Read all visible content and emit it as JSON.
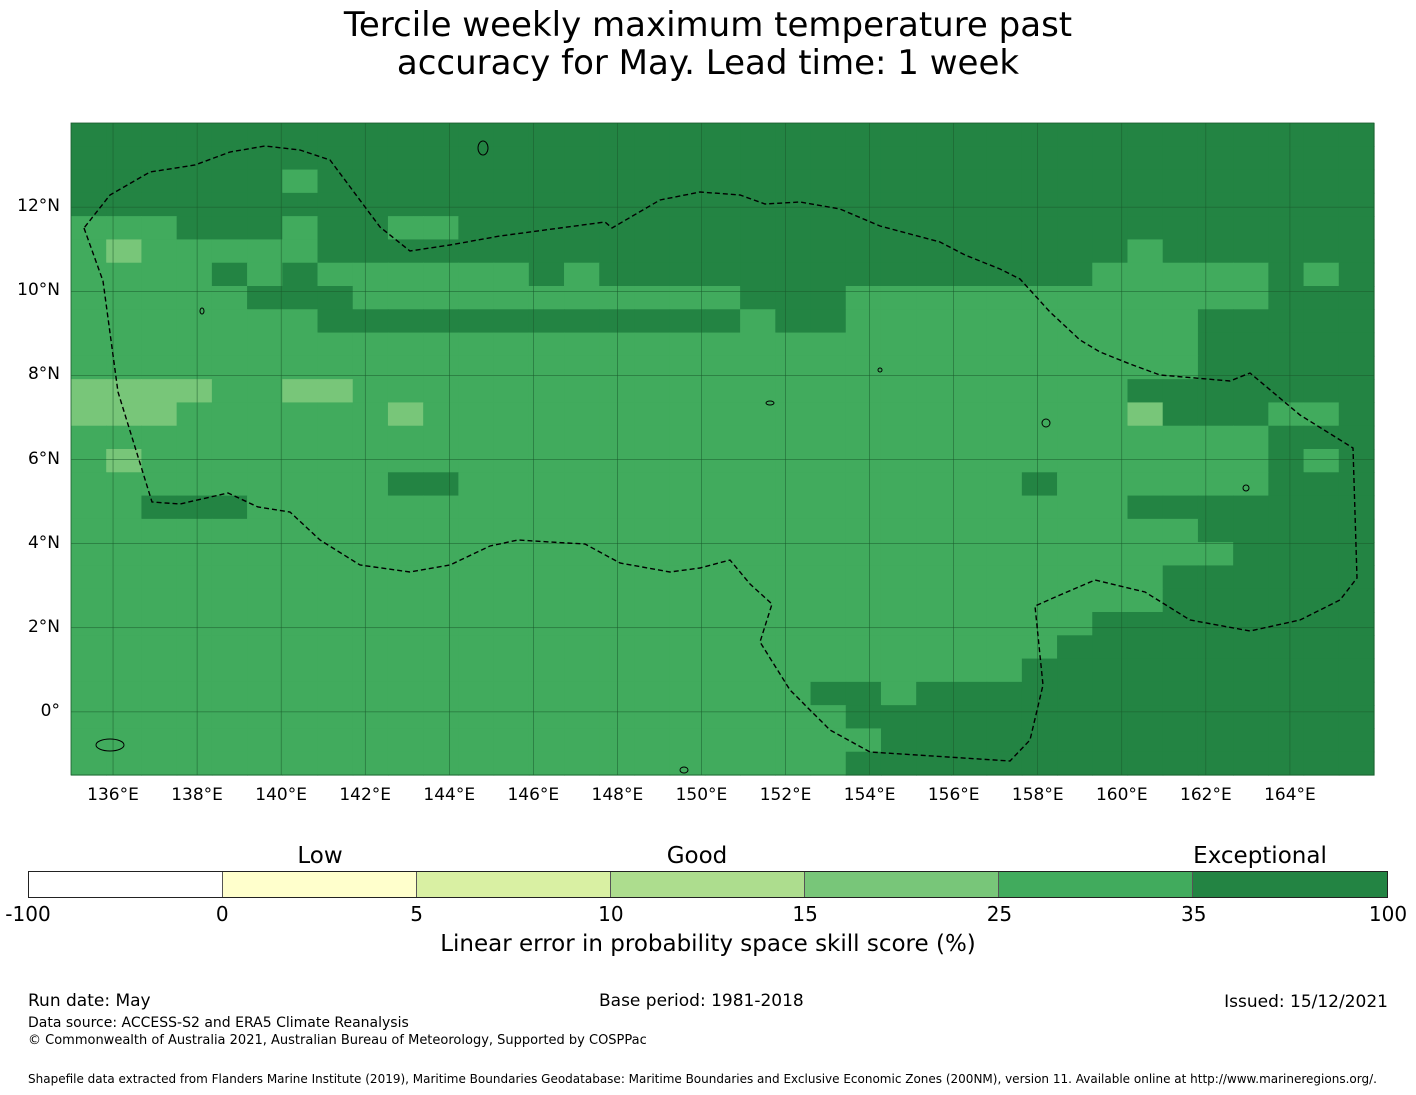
{
  "title": {
    "line1": "Tercile weekly maximum temperature past",
    "line2": "accuracy for May. Lead time: 1 week"
  },
  "map": {
    "lat_labels": [
      "12°N",
      "10°N",
      "8°N",
      "6°N",
      "4°N",
      "2°N",
      "0°"
    ],
    "lat_values": [
      12,
      10,
      8,
      6,
      4,
      2,
      0
    ],
    "lon_labels": [
      "136°E",
      "138°E",
      "140°E",
      "142°E",
      "144°E",
      "146°E",
      "148°E",
      "150°E",
      "152°E",
      "154°E",
      "156°E",
      "158°E",
      "160°E",
      "162°E",
      "164°E"
    ],
    "lon_values": [
      136,
      138,
      140,
      142,
      144,
      146,
      148,
      150,
      152,
      154,
      156,
      158,
      160,
      162,
      164
    ],
    "extent": {
      "lon_min": 135,
      "lon_max": 166,
      "lat_min": -1.5,
      "lat_max": 14
    },
    "grid_cell_deg": 0.83,
    "field_description": "gridded skill score, categories 4=15-25, 5=25-35, 6=35-100",
    "cell_grid": [
      "6666666666666666666666666666666666666",
      "6666666666666666666666666666666666666",
      "6666665666666666666666666666666666666",
      "6666666666666666666666666666666666666",
      "5556665665566666666666666666666666666",
      "5455555666666666666666666666665666666",
      "5555656555555656666666666666655555656",
      "5555566655555555555666555555555555666",
      "5555555666666666666566555555555566666",
      "5555555555555555555555555555555566666",
      "5555555555555555555555555555555566666",
      "4444554455555555555555555555556666666",
      "4445555554555555555555555555554666556",
      "5555555555555555555555555555555555666",
      "5455555555555555555555555555555555656",
      "5555555556655555555555555556555555666",
      "5566655555555555555555555555556666666",
      "5555555555555555555555555555555566666",
      "5555555555555555555555555555555556666",
      "5555555555555555555555555555555666666",
      "5555555555555555555555555555555666666",
      "5555555555555555555555555555566666666",
      "5555555555555555555555555555666666666",
      "5555555555555555555555555556666666666",
      "5555555555555555555556656666666666666",
      "5555555555555555555555666666666666666",
      "5555555555555555555555566666666666666",
      "5555555555555555555555666666666666666"
    ]
  },
  "colorbar": {
    "top_labels": [
      "Low",
      "Good",
      "Exceptional"
    ],
    "ticks": [
      "-100",
      "0",
      "5",
      "10",
      "15",
      "25",
      "35",
      "100"
    ],
    "colors": [
      "#ffffff",
      "#ffffcc",
      "#d9f0a3",
      "#addd8e",
      "#78c679",
      "#41ab5d",
      "#238443"
    ],
    "label": "Linear error in probability space skill score (%)"
  },
  "footer": {
    "run_date": "Run date: May",
    "base_period": "Base period: 1981-2018",
    "issued": "Issued: 15/12/2021",
    "data_source": "Data source: ACCESS-S2 and ERA5 Climate Reanalysis",
    "copyright": "© Commonwealth of Australia 2021, Australian Bureau of Meteorology, Supported by COSPPac",
    "shapefile": "Shapefile data extracted from Flanders Marine Institute (2019), Maritime Boundaries Geodatabase: Maritime Boundaries and Exclusive Economic Zones (200NM), version 11. Available online at http://www.marineregions.org/."
  }
}
